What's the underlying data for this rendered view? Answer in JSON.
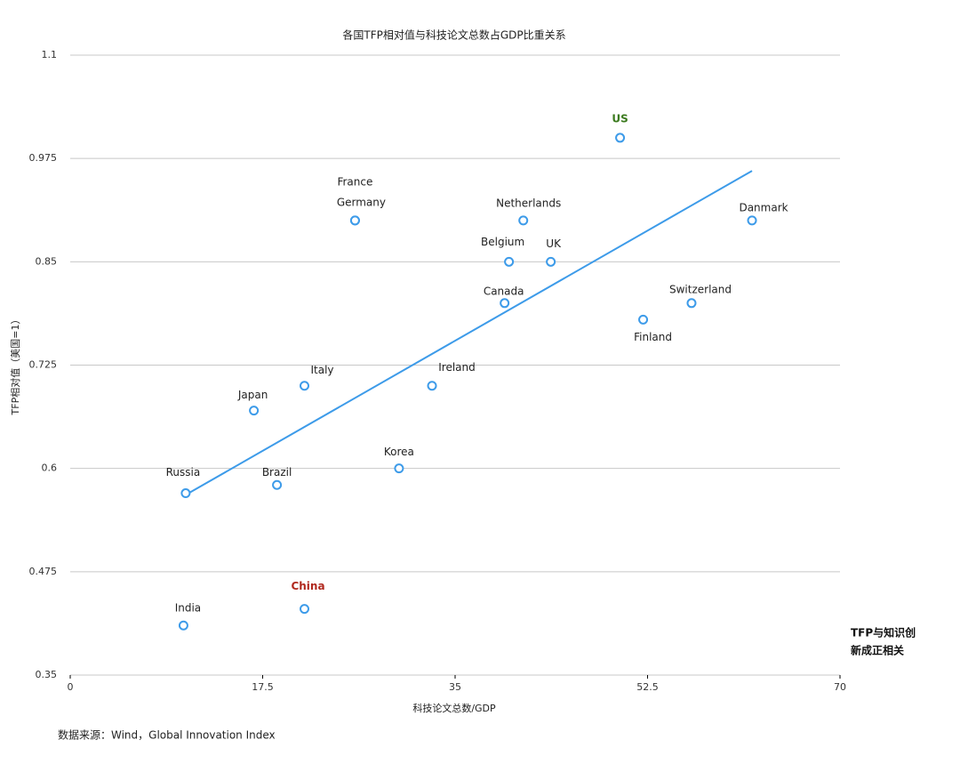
{
  "chart_data": {
    "type": "scatter",
    "title": "各国TFP相对值与科技论文总数占GDP比重关系",
    "x_label": "科技论文总数/GDP",
    "y_label": "TFP相对值（美国=1）",
    "source": "数据来源：Wind，Global Innovation Index",
    "annotation": [
      "TFP与知识创",
      "新成正相关"
    ],
    "xlim": [
      0,
      70
    ],
    "ylim": [
      0.35,
      1.1
    ],
    "xticks": [
      0,
      17.5,
      35,
      52.5,
      70
    ],
    "yticks": [
      0.35,
      0.475,
      0.6,
      0.725,
      0.85,
      0.975,
      1.1
    ],
    "grid": true,
    "color": "#3d9be9",
    "points": [
      {
        "label": "US",
        "x": 50,
        "y": 1.0,
        "label_color": "#3b7a1e"
      },
      {
        "label": "Danmark",
        "x": 62,
        "y": 0.9
      },
      {
        "label": "France",
        "x": 25.9,
        "y": 0.9
      },
      {
        "label": "Germany",
        "x": 25.9,
        "y": 0.9
      },
      {
        "label": "Netherlands",
        "x": 41.2,
        "y": 0.9
      },
      {
        "label": "Belgium",
        "x": 39.9,
        "y": 0.85
      },
      {
        "label": "UK",
        "x": 43.7,
        "y": 0.85
      },
      {
        "label": "Canada",
        "x": 39.5,
        "y": 0.8
      },
      {
        "label": "Switzerland",
        "x": 56.5,
        "y": 0.8
      },
      {
        "label": "Finland",
        "x": 52.1,
        "y": 0.78
      },
      {
        "label": "Italy",
        "x": 21.3,
        "y": 0.7
      },
      {
        "label": "Ireland",
        "x": 32.9,
        "y": 0.7
      },
      {
        "label": "Japan",
        "x": 16.7,
        "y": 0.67
      },
      {
        "label": "Korea",
        "x": 29.9,
        "y": 0.6
      },
      {
        "label": "Russia",
        "x": 10.5,
        "y": 0.57
      },
      {
        "label": "Brazil",
        "x": 18.8,
        "y": 0.58
      },
      {
        "label": "China",
        "x": 21.3,
        "y": 0.43,
        "label_color": "#b0281e"
      },
      {
        "label": "India",
        "x": 10.3,
        "y": 0.41
      }
    ],
    "trendline": {
      "x": [
        10.5,
        62
      ],
      "y": [
        0.568,
        0.96
      ]
    }
  }
}
